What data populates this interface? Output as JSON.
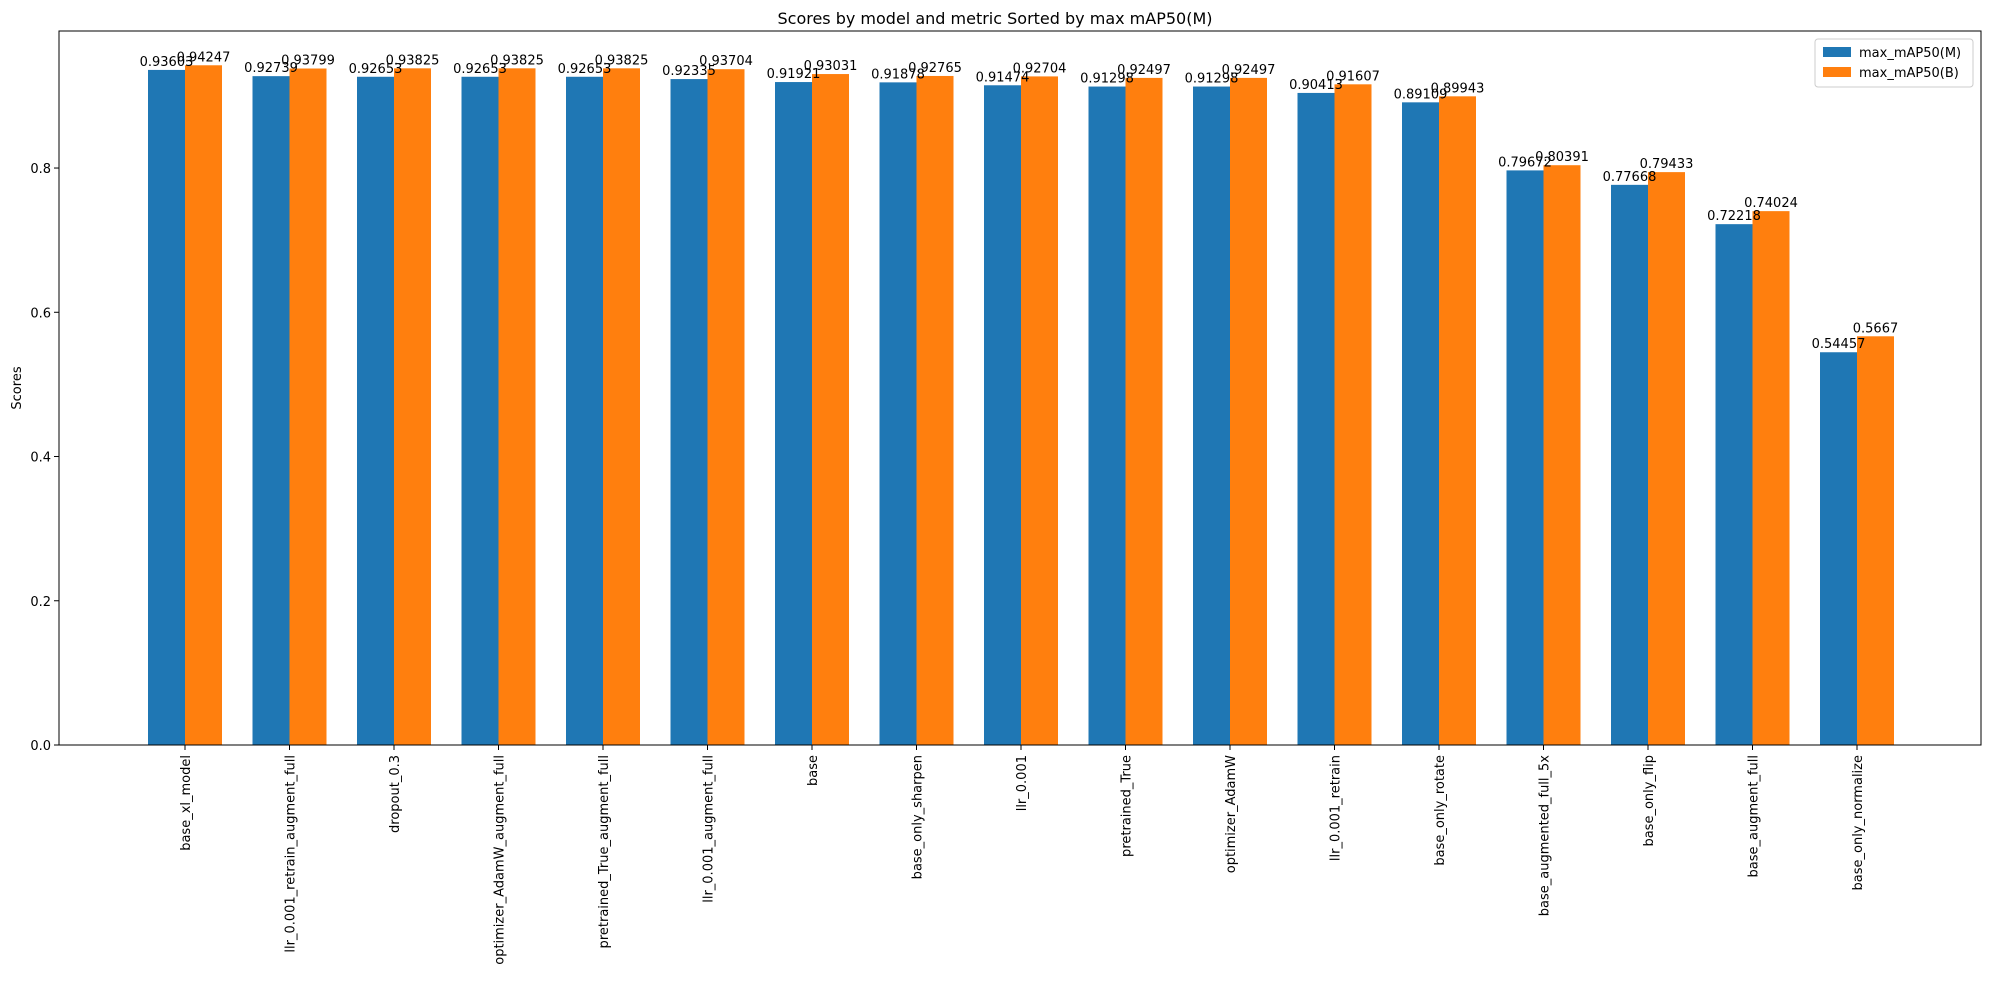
{
  "chart_data": {
    "type": "bar",
    "title": "Scores by model and metric Sorted by max mAP50(M)",
    "xlabel": "",
    "ylabel": "Scores",
    "ylim": [
      0,
      0.99
    ],
    "yticks": [
      0.0,
      0.2,
      0.4,
      0.6,
      0.8
    ],
    "ytick_labels": [
      "0.0",
      "0.2",
      "0.4",
      "0.6",
      "0.8"
    ],
    "grid": false,
    "legend_position": "top-right",
    "categories": [
      "base_xl_model",
      "llr_0.001_retrain_augment_full",
      "dropout_0.3",
      "optimizer_AdamW_augment_full",
      "pretrained_True_augment_full",
      "llr_0.001_augment_full",
      "base",
      "base_only_sharpen",
      "llr_0.001",
      "pretrained_True",
      "optimizer_AdamW",
      "llr_0.001_retrain",
      "base_only_rotate",
      "base_augmented_full_5x",
      "base_only_flip",
      "base_augment_full",
      "base_only_normalize"
    ],
    "series": [
      {
        "name": "max_mAP50(M)",
        "color": "#1f77b4",
        "values": [
          0.93603,
          0.92739,
          0.92653,
          0.92653,
          0.92653,
          0.92335,
          0.91921,
          0.91878,
          0.91474,
          0.91298,
          0.91298,
          0.90413,
          0.89109,
          0.79672,
          0.77668,
          0.72218,
          0.54457
        ],
        "labels": [
          "0.93603",
          "0.92739",
          "0.92653",
          "0.92653",
          "0.92653",
          "0.92335",
          "0.91921",
          "0.91878",
          "0.91474",
          "0.91298",
          "0.91298",
          "0.90413",
          "0.89109",
          "0.79672",
          "0.77668",
          "0.72218",
          "0.54457"
        ]
      },
      {
        "name": "max_mAP50(B)",
        "color": "#ff7f0e",
        "values": [
          0.94247,
          0.93799,
          0.93825,
          0.93825,
          0.93825,
          0.93704,
          0.93031,
          0.92765,
          0.92704,
          0.92497,
          0.92497,
          0.91607,
          0.89943,
          0.80391,
          0.79433,
          0.74024,
          0.5667
        ],
        "labels": [
          "0.94247",
          "0.93799",
          "0.93825",
          "0.93825",
          "0.93825",
          "0.93704",
          "0.93031",
          "0.92765",
          "0.92704",
          "0.92497",
          "0.92497",
          "0.91607",
          "0.89943",
          "0.80391",
          "0.79433",
          "0.74024",
          "0.5667"
        ]
      }
    ]
  }
}
